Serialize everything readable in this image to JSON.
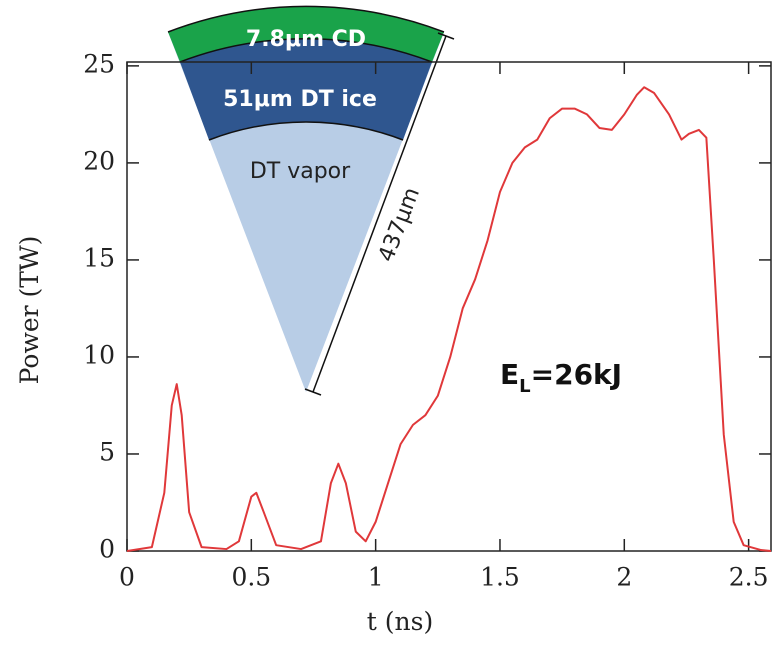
{
  "chart_data": {
    "type": "line",
    "x_label": "t (ns)",
    "y_label": "Power (TW)",
    "x": [
      0,
      0.1,
      0.15,
      0.18,
      0.2,
      0.22,
      0.25,
      0.3,
      0.4,
      0.45,
      0.5,
      0.52,
      0.55,
      0.6,
      0.7,
      0.78,
      0.82,
      0.85,
      0.88,
      0.92,
      0.96,
      1.0,
      1.05,
      1.1,
      1.15,
      1.2,
      1.25,
      1.3,
      1.35,
      1.4,
      1.45,
      1.5,
      1.55,
      1.6,
      1.65,
      1.7,
      1.75,
      1.8,
      1.85,
      1.9,
      1.95,
      2.0,
      2.05,
      2.08,
      2.12,
      2.18,
      2.23,
      2.26,
      2.3,
      2.33,
      2.36,
      2.4,
      2.44,
      2.48,
      2.55,
      2.59
    ],
    "values": [
      0,
      0.2,
      3,
      7.5,
      8.6,
      7,
      2,
      0.2,
      0.1,
      0.5,
      2.8,
      3.0,
      2,
      0.3,
      0.1,
      0.5,
      3.5,
      4.5,
      3.5,
      1,
      0.5,
      1.5,
      3.5,
      5.5,
      6.5,
      7,
      8,
      10,
      12.5,
      14,
      16,
      18.5,
      20,
      20.8,
      21.2,
      22.3,
      22.8,
      22.8,
      22.5,
      21.8,
      21.7,
      22.5,
      23.5,
      23.9,
      23.6,
      22.5,
      21.2,
      21.5,
      21.7,
      21.3,
      15,
      6,
      1.5,
      0.3,
      0.05,
      0
    ],
    "color": "#e0383a",
    "xlim": [
      0,
      2.59
    ],
    "ylim": [
      0,
      25.2
    ],
    "xticks": [
      0,
      0.5,
      1,
      1.5,
      2,
      2.5
    ],
    "yticks": [
      0,
      5,
      10,
      15,
      20,
      25
    ],
    "annotation": {
      "main": "E",
      "sub": "L",
      "rest": "=26kJ"
    },
    "inset": {
      "outer_layer": "7.8μm CD",
      "middle_layer": "51μm DT ice",
      "inner_layer": "DT vapor",
      "radius": "437μm"
    }
  }
}
